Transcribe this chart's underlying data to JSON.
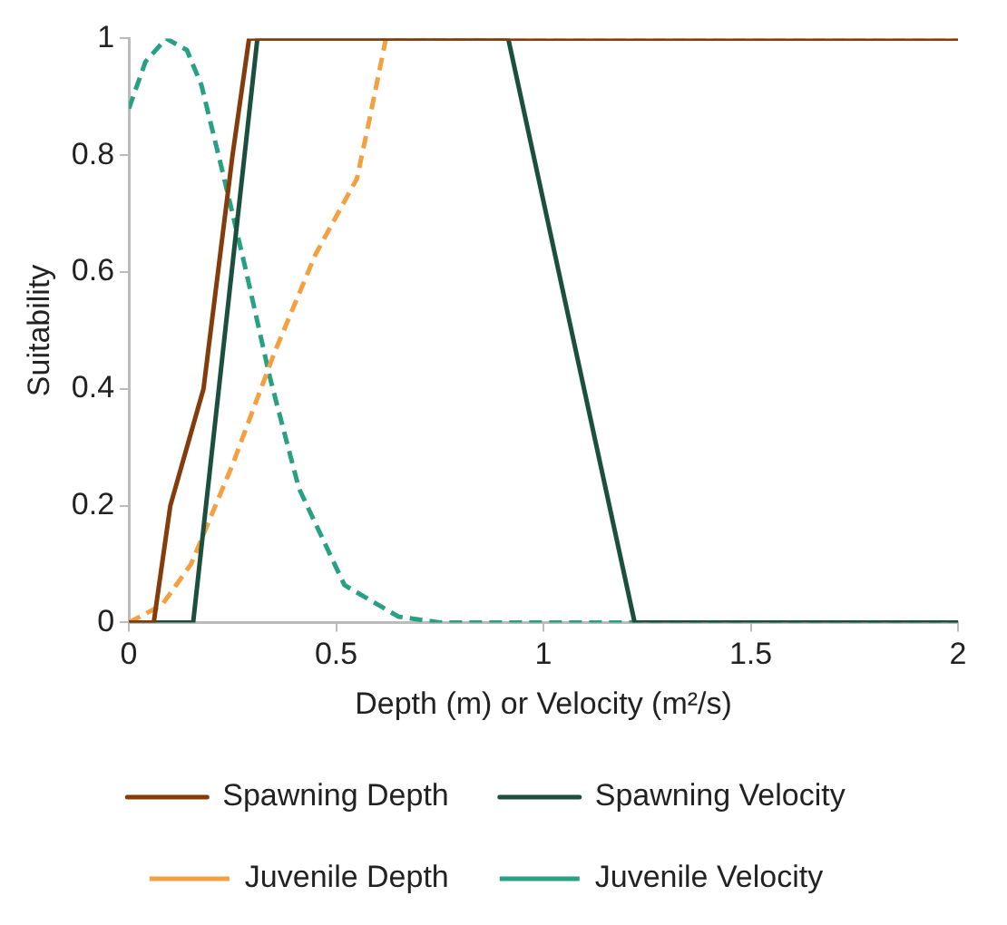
{
  "chart_data": {
    "type": "line",
    "xlabel": "Depth (m) or Velocity (m²/s)",
    "ylabel": "Suitability",
    "xlim": [
      0,
      2
    ],
    "xticks": [
      0,
      0.5,
      1,
      1.5,
      2
    ],
    "ylim": [
      0,
      1
    ],
    "yticks": [
      0,
      0.2,
      0.4,
      0.6,
      0.8,
      1
    ],
    "grid": false,
    "legend": "bottom",
    "marker": "none",
    "series": [
      {
        "name": "Spawning Depth",
        "color": "#843c0c",
        "line_style": "solid",
        "x": [
          0,
          0.06,
          0.1,
          0.18,
          0.25,
          0.29,
          2
        ],
        "values": [
          0,
          0,
          0.2,
          0.4,
          0.8,
          1,
          1
        ]
      },
      {
        "name": "Spawning Velocity",
        "color": "#1b4f3e",
        "line_style": "solid",
        "x": [
          0,
          0.155,
          0.31,
          0.915,
          1.22,
          2
        ],
        "values": [
          0,
          0,
          1,
          1,
          0,
          0
        ]
      },
      {
        "name": "Juvenile Depth",
        "color": "#f4a041",
        "line_style": "dashed",
        "x": [
          0,
          0.08,
          0.15,
          0.25,
          0.35,
          0.45,
          0.55,
          0.58,
          0.62,
          2
        ],
        "values": [
          0,
          0.03,
          0.1,
          0.27,
          0.46,
          0.63,
          0.76,
          0.86,
          1,
          1
        ]
      },
      {
        "name": "Juvenile Velocity",
        "color": "#28a082",
        "line_style": "dashed",
        "x": [
          0,
          0.04,
          0.09,
          0.14,
          0.175,
          0.23,
          0.28,
          0.34,
          0.41,
          0.52,
          0.65,
          0.75,
          2
        ],
        "values": [
          0.88,
          0.96,
          1,
          0.98,
          0.92,
          0.76,
          0.61,
          0.42,
          0.23,
          0.064,
          0.01,
          0,
          0
        ]
      }
    ]
  }
}
